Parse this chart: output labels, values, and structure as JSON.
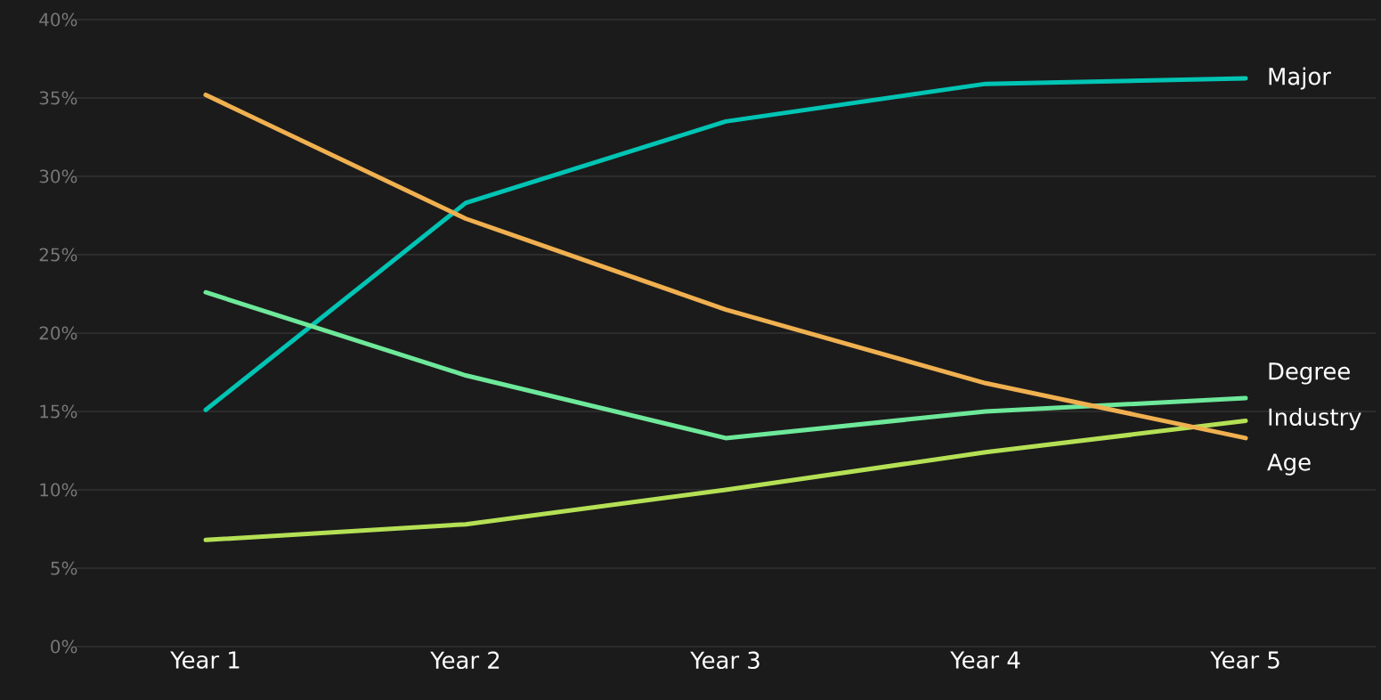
{
  "chart_data": {
    "type": "line",
    "categories": [
      "Year 1",
      "Year 2",
      "Year 3",
      "Year 4",
      "Year 5"
    ],
    "series": [
      {
        "name": "Major",
        "color": "#00c4b4",
        "values": [
          15.1,
          28.3,
          33.5,
          35.9,
          36.25
        ]
      },
      {
        "name": "Degree",
        "color": "#6ee89a",
        "values": [
          22.6,
          17.3,
          13.3,
          15.0,
          15.85
        ]
      },
      {
        "name": "Industry",
        "color": "#b5e055",
        "values": [
          6.8,
          7.8,
          10.0,
          12.4,
          14.4
        ]
      },
      {
        "name": "Age",
        "color": "#f0b050",
        "values": [
          35.2,
          27.3,
          21.5,
          16.8,
          13.3
        ]
      }
    ],
    "ylim": [
      0,
      40
    ],
    "yticks": [
      {
        "value": 0,
        "label": "0%"
      },
      {
        "value": 5,
        "label": "5%"
      },
      {
        "value": 10,
        "label": "10%"
      },
      {
        "value": 15,
        "label": "15%"
      },
      {
        "value": 20,
        "label": "20%"
      },
      {
        "value": 25,
        "label": "25%"
      },
      {
        "value": 30,
        "label": "30%"
      },
      {
        "value": 35,
        "label": "35%"
      },
      {
        "value": 40,
        "label": "40%"
      }
    ],
    "grid": "y",
    "line_style": "solid"
  }
}
